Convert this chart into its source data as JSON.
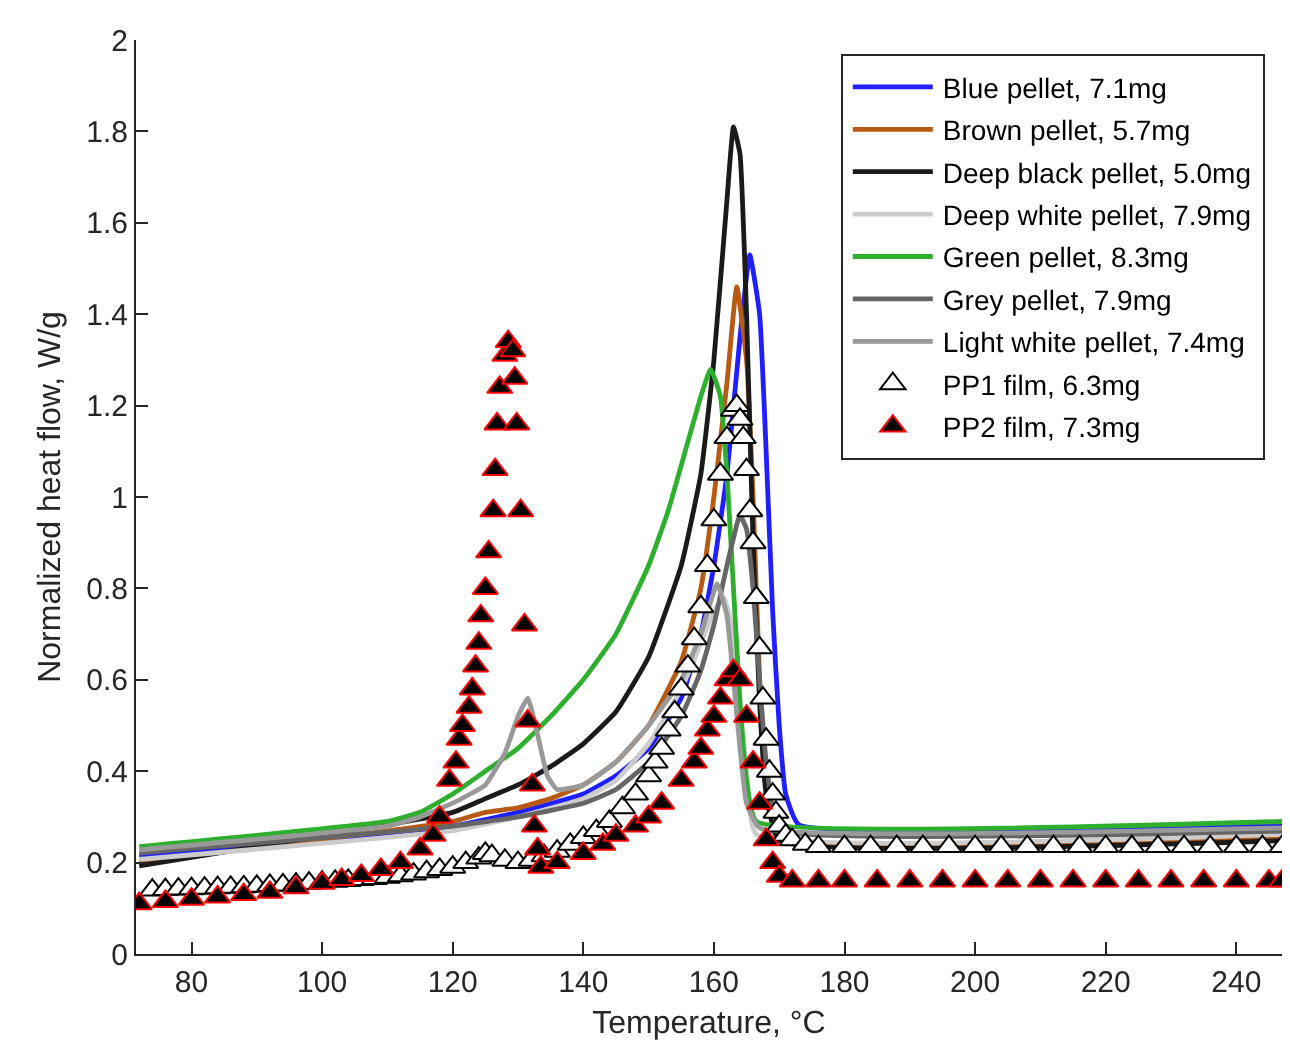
{
  "chart_data": {
    "type": "line",
    "xlabel": "Temperature, °C",
    "ylabel": "Normalized heat flow, W/g",
    "xlim": [
      71.5,
      247
    ],
    "ylim": [
      0,
      2
    ],
    "xticks": [
      80,
      100,
      120,
      140,
      160,
      180,
      200,
      220,
      240
    ],
    "yticks": [
      0,
      0.2,
      0.4,
      0.6,
      0.8,
      1,
      1.2,
      1.4,
      1.6,
      1.8,
      2
    ],
    "legend": "top right",
    "series": [
      {
        "name": "Blue pellet, 7.1mg",
        "marker": "none",
        "color": "#1f1fff",
        "x": [
          72,
          120,
          130,
          140,
          145,
          150,
          155,
          158,
          160,
          162,
          164,
          165.5,
          167,
          168,
          169,
          170,
          171,
          173,
          247
        ],
        "values": [
          0.214,
          0.28,
          0.31,
          0.35,
          0.39,
          0.45,
          0.56,
          0.7,
          0.85,
          1.05,
          1.35,
          1.53,
          1.4,
          1.1,
          0.75,
          0.5,
          0.35,
          0.283,
          0.283
        ]
      },
      {
        "name": "Brown pellet, 5.7mg",
        "marker": "none",
        "color": "#b85a12",
        "x": [
          72,
          120,
          125,
          130,
          135,
          140,
          145,
          150,
          155,
          158,
          160,
          162,
          163.5,
          165,
          166,
          167,
          168,
          170,
          247
        ],
        "values": [
          0.2,
          0.29,
          0.31,
          0.32,
          0.34,
          0.37,
          0.42,
          0.5,
          0.64,
          0.8,
          1.0,
          1.25,
          1.46,
          1.3,
          1.0,
          0.6,
          0.38,
          0.255,
          0.255
        ]
      },
      {
        "name": "Deep black pellet, 5.0mg",
        "marker": "none",
        "color": "#1a1a1a",
        "x": [
          72,
          120,
          125,
          130,
          135,
          140,
          145,
          150,
          155,
          158,
          160,
          162,
          163,
          164,
          165,
          166,
          167,
          168,
          170,
          247
        ],
        "values": [
          0.193,
          0.31,
          0.34,
          0.37,
          0.41,
          0.46,
          0.53,
          0.65,
          0.85,
          1.05,
          1.3,
          1.65,
          1.81,
          1.75,
          1.4,
          0.9,
          0.55,
          0.35,
          0.248,
          0.248
        ]
      },
      {
        "name": "Deep white pellet, 7.9mg",
        "marker": "none",
        "color": "#cccccc",
        "x": [
          72,
          120,
          130,
          140,
          145,
          150,
          155,
          158,
          160,
          161.5,
          163,
          164,
          165,
          166.5,
          247
        ],
        "values": [
          0.207,
          0.27,
          0.3,
          0.34,
          0.38,
          0.46,
          0.58,
          0.68,
          0.75,
          0.78,
          0.7,
          0.55,
          0.4,
          0.262,
          0.262
        ]
      },
      {
        "name": "Green pellet, 8.3mg",
        "marker": "none",
        "color": "#2eb02e",
        "x": [
          72,
          110,
          115,
          120,
          125,
          130,
          135,
          140,
          145,
          150,
          153,
          156,
          158,
          159.5,
          161,
          162,
          163,
          164,
          165,
          166.5,
          247
        ],
        "values": [
          0.235,
          0.29,
          0.31,
          0.35,
          0.4,
          0.45,
          0.52,
          0.6,
          0.7,
          0.85,
          0.97,
          1.12,
          1.22,
          1.28,
          1.22,
          1.05,
          0.8,
          0.55,
          0.38,
          0.29,
          0.29
        ]
      },
      {
        "name": "Grey pellet, 7.9mg",
        "marker": "none",
        "color": "#666666",
        "x": [
          72,
          120,
          130,
          140,
          145,
          150,
          155,
          158,
          160,
          162,
          164,
          165,
          166,
          167,
          168,
          169,
          170.5,
          247
        ],
        "values": [
          0.221,
          0.28,
          0.3,
          0.33,
          0.36,
          0.42,
          0.52,
          0.62,
          0.72,
          0.85,
          0.96,
          0.93,
          0.8,
          0.6,
          0.42,
          0.32,
          0.269,
          0.269
        ]
      },
      {
        "name": "Light white pellet, 7.4mg",
        "marker": "none",
        "color": "#999999",
        "x": [
          72,
          110,
          115,
          120,
          125,
          128,
          130,
          131.5,
          133,
          134.5,
          136,
          140,
          145,
          150,
          155,
          158,
          160.5,
          162,
          163,
          164,
          165,
          167,
          247
        ],
        "values": [
          0.228,
          0.28,
          0.3,
          0.33,
          0.37,
          0.44,
          0.52,
          0.56,
          0.48,
          0.39,
          0.36,
          0.37,
          0.42,
          0.5,
          0.6,
          0.7,
          0.81,
          0.74,
          0.6,
          0.45,
          0.33,
          0.276,
          0.276
        ]
      },
      {
        "name": "PP1 film, 6.3mg",
        "type": "scatter",
        "marker": "triangle",
        "color": "#000000",
        "x": [
          74,
          76,
          78,
          80,
          82,
          84,
          86,
          88,
          90,
          92,
          94,
          96,
          98,
          100,
          102,
          104,
          106,
          108,
          110,
          112,
          114,
          116,
          118,
          120,
          122,
          124,
          125,
          126,
          128,
          130,
          132,
          134,
          136,
          138,
          140,
          142,
          144,
          146,
          148,
          150,
          151,
          152,
          153,
          154,
          155,
          156,
          157,
          158,
          159,
          160,
          161,
          162,
          163,
          163.5,
          164,
          164.5,
          165,
          165.5,
          166,
          166.5,
          167,
          167.5,
          168,
          168.5,
          169,
          169.5,
          170,
          171,
          172,
          174,
          176,
          180,
          184,
          188,
          192,
          196,
          200,
          204,
          208,
          212,
          216,
          220,
          224,
          228,
          232,
          236,
          240,
          244,
          247
        ],
        "values": [
          0.14,
          0.141,
          0.142,
          0.143,
          0.144,
          0.145,
          0.146,
          0.147,
          0.148,
          0.15,
          0.151,
          0.153,
          0.155,
          0.157,
          0.159,
          0.161,
          0.163,
          0.165,
          0.168,
          0.171,
          0.175,
          0.18,
          0.185,
          0.19,
          0.2,
          0.21,
          0.22,
          0.215,
          0.205,
          0.2,
          0.205,
          0.215,
          0.225,
          0.24,
          0.255,
          0.27,
          0.29,
          0.32,
          0.35,
          0.39,
          0.42,
          0.45,
          0.49,
          0.53,
          0.58,
          0.63,
          0.69,
          0.76,
          0.85,
          0.95,
          1.05,
          1.13,
          1.19,
          1.2,
          1.17,
          1.13,
          1.06,
          0.97,
          0.9,
          0.78,
          0.67,
          0.56,
          0.47,
          0.4,
          0.35,
          0.31,
          0.28,
          0.26,
          0.25,
          0.24,
          0.235,
          0.235,
          0.235,
          0.235,
          0.235,
          0.235,
          0.235,
          0.235,
          0.235,
          0.235,
          0.235,
          0.235,
          0.235,
          0.235,
          0.235,
          0.235,
          0.235,
          0.235,
          0.235
        ]
      },
      {
        "name": "PP2 film, 7.3mg",
        "type": "scatter",
        "marker": "triangle",
        "color": "#ff0000",
        "x": [
          72,
          76,
          80,
          84,
          88,
          92,
          96,
          100,
          103,
          106,
          109,
          112,
          115,
          117,
          118,
          119.5,
          120.5,
          121,
          121.5,
          122.5,
          123,
          123.5,
          124,
          124.3,
          125,
          125.5,
          126.2,
          126.5,
          126.8,
          127.2,
          128,
          128.5,
          129.2,
          129.5,
          129.8,
          130.4,
          131,
          131.5,
          132.2,
          132.5,
          133,
          133.5,
          136,
          140,
          143,
          145,
          148,
          150,
          152,
          155,
          157,
          158,
          159,
          160,
          161,
          162,
          163,
          164,
          165,
          166,
          167,
          168,
          169,
          170,
          172,
          176,
          180,
          185,
          190,
          195,
          200,
          205,
          210,
          215,
          220,
          225,
          230,
          235,
          240,
          245,
          247
        ],
        "values": [
          0.11,
          0.115,
          0.12,
          0.125,
          0.13,
          0.135,
          0.145,
          0.155,
          0.163,
          0.172,
          0.185,
          0.2,
          0.23,
          0.26,
          0.3,
          0.38,
          0.42,
          0.47,
          0.5,
          0.54,
          0.58,
          0.63,
          0.68,
          0.74,
          0.8,
          0.88,
          0.97,
          1.06,
          1.16,
          1.24,
          1.31,
          1.34,
          1.32,
          1.26,
          1.16,
          0.97,
          0.72,
          0.51,
          0.37,
          0.28,
          0.23,
          0.19,
          0.2,
          0.22,
          0.24,
          0.26,
          0.28,
          0.3,
          0.33,
          0.38,
          0.42,
          0.45,
          0.49,
          0.52,
          0.56,
          0.6,
          0.62,
          0.6,
          0.52,
          0.42,
          0.33,
          0.25,
          0.2,
          0.17,
          0.16,
          0.16,
          0.16,
          0.16,
          0.16,
          0.16,
          0.16,
          0.16,
          0.16,
          0.16,
          0.16,
          0.16,
          0.16,
          0.16,
          0.16,
          0.16,
          0.16
        ]
      }
    ]
  }
}
